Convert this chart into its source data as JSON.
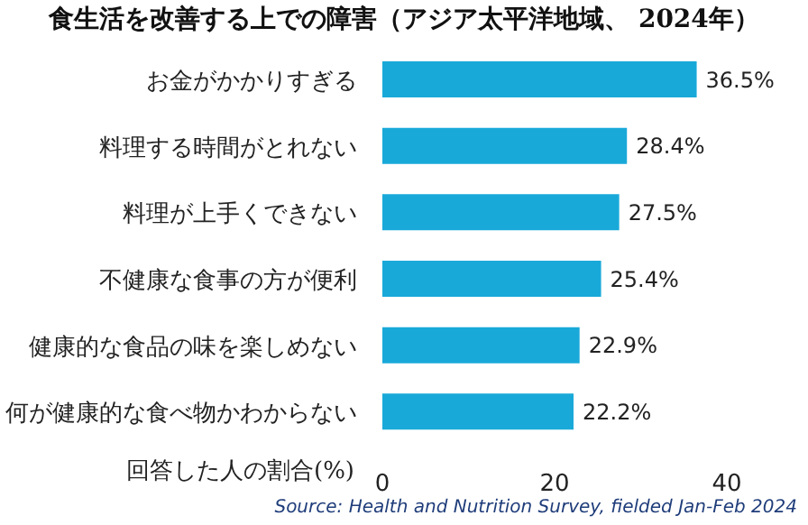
{
  "chart_data": {
    "type": "bar",
    "orientation": "horizontal",
    "title": "食生活を改善する上での障害（アジア太平洋地域、 2024年）",
    "categories": [
      "お金がかかりすぎる",
      "料理する時間がとれない",
      "料理が上手くできない",
      "不健康な食事の方が便利",
      "健康的な食品の味を楽しめない",
      "何が健康的な食べ物かわからない"
    ],
    "values": [
      36.5,
      28.4,
      27.5,
      25.4,
      22.9,
      22.2
    ],
    "value_labels": [
      "36.5%",
      "28.4%",
      "27.5%",
      "25.4%",
      "22.9%",
      "22.2%"
    ],
    "color": "#19a9d9",
    "xlim": [
      0,
      40
    ],
    "xticks": [
      0,
      20,
      40
    ],
    "xlabel": "回答した人の割合(%)",
    "grid": false,
    "annotations": [
      "Source: Health and Nutrition Survey, fielded Jan-Feb 2024"
    ]
  }
}
